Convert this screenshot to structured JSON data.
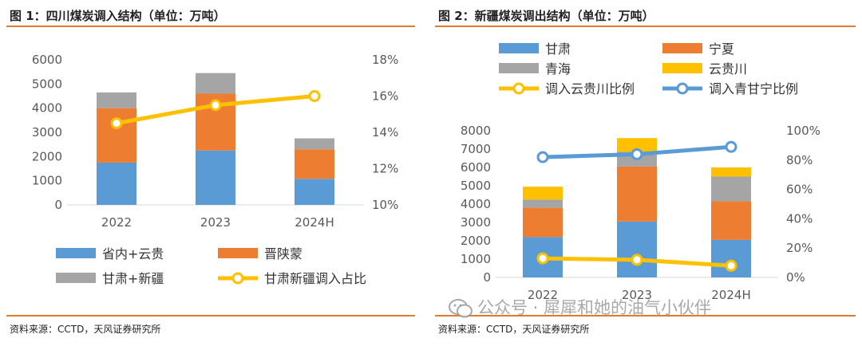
{
  "left": {
    "title": "图 1：四川煤炭调入结构（单位：万吨）",
    "source": "资料来源：CCTD，天风证券研究所"
  },
  "right": {
    "title": "图 2：新疆煤炭调出结构（单位：万吨）",
    "source": "资料来源：CCTD，天风证券研究所"
  },
  "watermark": {
    "text": "公众号 · 犀犀和她的油气小伙伴",
    "icon": "wechat-icon"
  },
  "colors": {
    "blue": "#5b9bd5",
    "orange": "#ed7d31",
    "gray": "#a5a5a5",
    "yellow": "#ffc000",
    "line_blue": "#5b9bd5",
    "rule": "#e07a2f"
  },
  "chart_data": [
    {
      "type": "bar",
      "stacked": true,
      "categories": [
        "2022",
        "2023",
        "2024H"
      ],
      "series": [
        {
          "name": "省内+云贵",
          "values": [
            1750,
            2250,
            1080
          ],
          "color": "#5b9bd5"
        },
        {
          "name": "晋陕蒙",
          "values": [
            2250,
            2350,
            1220
          ],
          "color": "#ed7d31"
        },
        {
          "name": "甘肃+新疆",
          "values": [
            650,
            850,
            450
          ],
          "color": "#a5a5a5"
        }
      ],
      "line_series": [
        {
          "name": "甘肃新疆调入占比",
          "values": [
            14.5,
            15.5,
            16.0
          ],
          "color": "#ffc000",
          "axis": "right"
        }
      ],
      "ylim": [
        0,
        6000
      ],
      "yticks": [
        "0",
        "1000",
        "2000",
        "3000",
        "4000",
        "5000",
        "6000"
      ],
      "y2lim": [
        10,
        18
      ],
      "y2ticks": [
        "10%",
        "12%",
        "14%",
        "16%",
        "18%"
      ],
      "legend_position": "bottom",
      "grid": false
    },
    {
      "type": "bar",
      "stacked": true,
      "categories": [
        "2022",
        "2023",
        "2024H"
      ],
      "series": [
        {
          "name": "甘肃",
          "values": [
            2200,
            3050,
            2050
          ],
          "color": "#5b9bd5"
        },
        {
          "name": "宁夏",
          "values": [
            1600,
            3000,
            2100
          ],
          "color": "#ed7d31"
        },
        {
          "name": "青海",
          "values": [
            450,
            800,
            1350
          ],
          "color": "#a5a5a5"
        },
        {
          "name": "云贵川",
          "values": [
            700,
            750,
            500
          ],
          "color": "#ffc000"
        }
      ],
      "line_series": [
        {
          "name": "调入云贵川比例",
          "values": [
            13,
            12,
            8
          ],
          "color": "#ffc000",
          "axis": "right"
        },
        {
          "name": "调入青甘宁比例",
          "values": [
            82,
            84,
            89
          ],
          "color": "#5b9bd5",
          "axis": "right"
        }
      ],
      "ylim": [
        0,
        8000
      ],
      "yticks": [
        "0",
        "1000",
        "2000",
        "3000",
        "4000",
        "5000",
        "6000",
        "7000",
        "8000"
      ],
      "y2lim": [
        0,
        100
      ],
      "y2ticks": [
        "0%",
        "20%",
        "40%",
        "60%",
        "80%",
        "100%"
      ],
      "legend_position": "top",
      "grid": false
    }
  ]
}
